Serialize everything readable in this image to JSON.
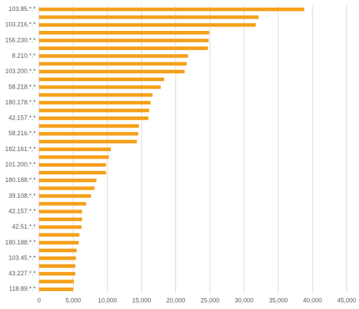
{
  "chart_data": {
    "type": "hbar",
    "categories": [
      "103.85.*.*",
      null,
      "103.216.*.*",
      null,
      "156.230.*.*",
      null,
      "8.210.*.*",
      null,
      "103.200.*.*",
      null,
      "58.218.*.*",
      null,
      "180.178.*.*",
      null,
      "42.157.*.*",
      null,
      "58.216.*.*",
      null,
      "182.161.*.*",
      null,
      "101.200.*.*",
      null,
      "180.188.*.*",
      null,
      "39.108.*.*",
      null,
      "42.157.*.*",
      null,
      "42.51.*.*",
      null,
      "180.188.*.*",
      null,
      "103.45.*.*",
      null,
      "43.227.*.*",
      null,
      "118.89.*.*"
    ],
    "values": [
      38800,
      32100,
      31700,
      24900,
      24800,
      24700,
      21800,
      21600,
      21300,
      18300,
      17800,
      16600,
      16300,
      16100,
      16000,
      14600,
      14500,
      14300,
      10500,
      10200,
      9800,
      9800,
      8400,
      8100,
      7600,
      6900,
      6300,
      6300,
      6200,
      5900,
      5800,
      5500,
      5400,
      5300,
      5300,
      5100,
      5000
    ],
    "color": "#f5a01a",
    "xlim": [
      0,
      45000
    ],
    "xticks": [
      0,
      {
        "value": 5000,
        "label": "5,000"
      },
      {
        "value": 10000,
        "label": "10,000"
      },
      {
        "value": 15000,
        "label": "15,000"
      },
      {
        "value": 20000,
        "label": "20,000"
      },
      {
        "value": 25000,
        "label": "25,000"
      },
      {
        "value": 30000,
        "label": "30,000"
      },
      {
        "value": 35000,
        "label": "35,000"
      },
      {
        "value": 40000,
        "label": "40,000"
      },
      {
        "value": 45000,
        "label": "45,000"
      }
    ],
    "grid": true
  }
}
